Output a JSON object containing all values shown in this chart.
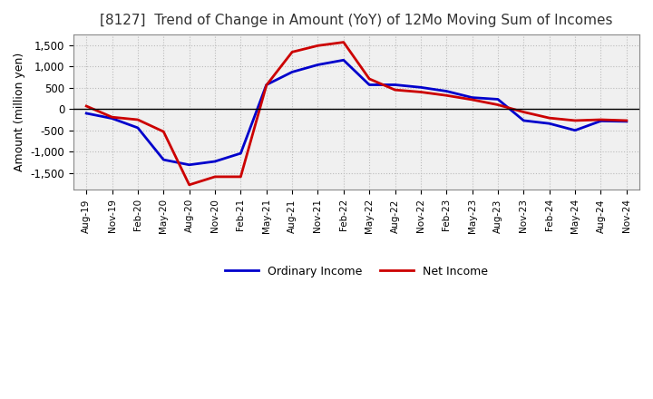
{
  "title": "[8127]  Trend of Change in Amount (YoY) of 12Mo Moving Sum of Incomes",
  "ylabel": "Amount (million yen)",
  "x_labels": [
    "Aug-19",
    "Nov-19",
    "Feb-20",
    "May-20",
    "Aug-20",
    "Nov-20",
    "Feb-21",
    "May-21",
    "Aug-21",
    "Nov-21",
    "Feb-22",
    "May-22",
    "Aug-22",
    "Nov-22",
    "Feb-23",
    "May-23",
    "Aug-23",
    "Nov-23",
    "Feb-24",
    "May-24",
    "Aug-24",
    "Nov-24"
  ],
  "ordinary_income": [
    -100,
    -220,
    -440,
    -1190,
    -1310,
    -1230,
    -1040,
    570,
    870,
    1040,
    1150,
    570,
    570,
    510,
    420,
    270,
    230,
    -270,
    -340,
    -500,
    -280,
    -290
  ],
  "net_income": [
    70,
    -190,
    -250,
    -530,
    -1780,
    -1590,
    -1590,
    560,
    1340,
    1490,
    1570,
    710,
    450,
    400,
    320,
    220,
    100,
    -70,
    -210,
    -270,
    -250,
    -270
  ],
  "ordinary_color": "#0000cc",
  "net_color": "#cc0000",
  "ylim": [
    -1900,
    1750
  ],
  "yticks": [
    -1500,
    -1000,
    -500,
    0,
    500,
    1000,
    1500
  ],
  "background_color": "#ffffff",
  "plot_bg_color": "#f0f0f0",
  "grid_color": "#bbbbbb"
}
